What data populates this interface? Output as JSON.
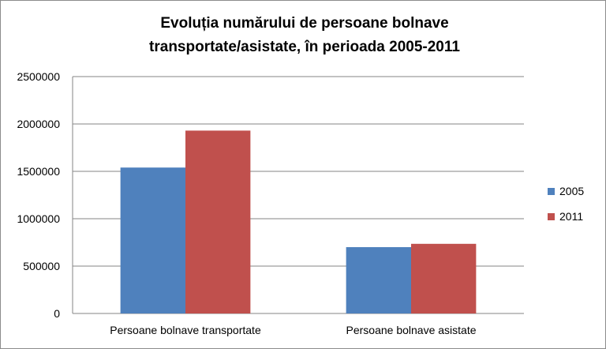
{
  "chart_data": {
    "type": "bar",
    "title": "Evoluția numărului de persoane bolnave transportate/asistate, în perioada 2005-2011",
    "title_lines": [
      "Evoluția numărului de persoane bolnave",
      "transportate/asistate, în perioada 2005-2011"
    ],
    "categories": [
      "Persoane bolnave transportate",
      "Persoane bolnave asistate"
    ],
    "series": [
      {
        "name": "2005",
        "color": "#4f81bd",
        "values": [
          1540000,
          700000
        ]
      },
      {
        "name": "2011",
        "color": "#c0504d",
        "values": [
          1930000,
          735000
        ]
      }
    ],
    "ylim": [
      0,
      2500000
    ],
    "yticks": [
      "0",
      "500000",
      "1000000",
      "1500000",
      "2000000",
      "2500000"
    ],
    "xlabel": "",
    "ylabel": "",
    "grid": true,
    "legend_position": "right"
  }
}
